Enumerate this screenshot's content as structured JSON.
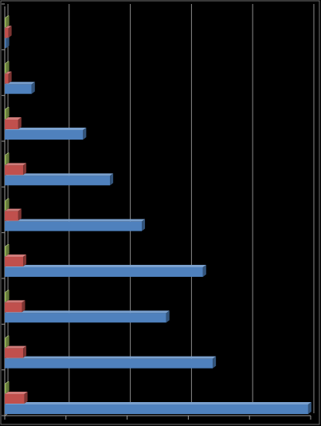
{
  "chart_data": {
    "type": "bar",
    "orientation": "horizontal",
    "style": "3d",
    "background": "#000000",
    "grid": true,
    "legend": "none",
    "xlim": [
      0,
      25
    ],
    "x_tick_step": 5,
    "categories": [
      "",
      "",
      "",
      "",
      "",
      "",
      "",
      "",
      ""
    ],
    "series": [
      {
        "color": "#4f81bd",
        "values": [
          0.1,
          2.2,
          6.4,
          8.6,
          11.2,
          16.2,
          13.2,
          17.0,
          24.8
        ]
      },
      {
        "color": "#c0504d",
        "values": [
          0.3,
          0.3,
          1.1,
          1.5,
          1.1,
          1.5,
          1.4,
          1.5,
          1.6
        ]
      },
      {
        "color": "#9bbb59",
        "values": [
          0.1,
          0.1,
          0.1,
          0.1,
          0.1,
          0.1,
          0.1,
          0.1,
          0.1
        ]
      }
    ]
  }
}
